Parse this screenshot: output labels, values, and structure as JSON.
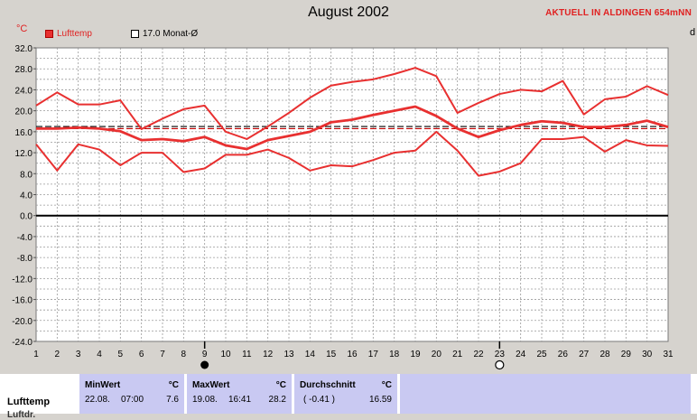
{
  "title": "August 2002",
  "brand": "AKTUELL IN ALDINGEN 654mNN",
  "unit_label": "°C",
  "legend": [
    {
      "label": "Lufttemp",
      "type": "filled"
    },
    {
      "label": "17.0 Monat-Ø",
      "type": "open"
    }
  ],
  "edge_glyph": "d",
  "colors": {
    "series": "#e83030",
    "mean": "#c00000",
    "background": "#ffffff",
    "frame": "#d6d3ce"
  },
  "markers": {
    "new_moon_day": 9,
    "full_moon_day": 23
  },
  "chart_data": {
    "type": "line",
    "title": "August 2002",
    "ylabel": "°C",
    "x": [
      1,
      2,
      3,
      4,
      5,
      6,
      7,
      8,
      9,
      10,
      11,
      12,
      13,
      14,
      15,
      16,
      17,
      18,
      19,
      20,
      21,
      22,
      23,
      24,
      25,
      26,
      27,
      28,
      29,
      30,
      31
    ],
    "ylim": [
      -24,
      32
    ],
    "yticks": [
      32.0,
      28.0,
      24.0,
      20.0,
      16.0,
      12.0,
      8.0,
      4.0,
      0.0,
      -4.0,
      -8.0,
      -12.0,
      -16.0,
      -20.0,
      -24.0
    ],
    "ytick_labels": [
      "32.0",
      "28.0",
      "24.0",
      "20.0",
      "16.0",
      "12.0",
      "8.0",
      "4.0",
      "0.0",
      "-4.0",
      "-8.0",
      "-12.0",
      "-16.0",
      "-20.0",
      "-24.0"
    ],
    "xtick_labels": [
      "1",
      "2",
      "3",
      "4",
      "5",
      "6",
      "7",
      "8",
      "9",
      "10",
      "11",
      "12",
      "13",
      "14",
      "15",
      "16",
      "17",
      "18",
      "19",
      "20",
      "21",
      "22",
      "23",
      "24",
      "25",
      "26",
      "27",
      "28",
      "29",
      "30",
      "31"
    ],
    "grid": true,
    "series": [
      {
        "role": "max",
        "values": [
          21.0,
          23.5,
          21.2,
          21.2,
          22.0,
          16.5,
          18.5,
          20.3,
          21.0,
          16.0,
          14.6,
          17.0,
          19.6,
          22.5,
          24.8,
          25.5,
          26.0,
          27.0,
          28.2,
          26.6,
          19.6,
          21.5,
          23.2,
          24.0,
          23.7,
          25.7,
          19.3,
          22.2,
          22.7,
          24.7,
          23.0
        ]
      },
      {
        "role": "avg",
        "values": [
          16.6,
          16.6,
          16.8,
          16.6,
          16.1,
          14.4,
          14.6,
          14.2,
          15.0,
          13.4,
          12.7,
          14.4,
          15.2,
          16.0,
          17.8,
          18.3,
          19.2,
          20.0,
          20.8,
          19.0,
          16.6,
          15.0,
          16.3,
          17.3,
          18.0,
          17.7,
          16.9,
          16.9,
          17.3,
          18.1,
          16.9
        ]
      },
      {
        "role": "min",
        "values": [
          13.6,
          8.6,
          13.6,
          12.6,
          9.6,
          12.0,
          12.0,
          8.3,
          9.0,
          11.6,
          11.6,
          12.6,
          11.0,
          8.6,
          9.6,
          9.4,
          10.6,
          12.0,
          12.4,
          16.0,
          12.4,
          7.6,
          8.4,
          10.0,
          14.6,
          14.6,
          15.0,
          12.2,
          14.4,
          13.4,
          13.3
        ]
      }
    ],
    "reference_lines": [
      {
        "label": "17.0 Monat-Ø",
        "value": 17.0,
        "style": "dashed",
        "color": "#000000"
      },
      {
        "value": 16.59,
        "style": "dashed",
        "color": "#c00000"
      }
    ]
  },
  "stats": {
    "row_label": "Lufttemp",
    "row_label_next": "Luftdr.",
    "unit": "°C",
    "min": {
      "header": "MinWert",
      "date": "22.08.",
      "time": "07:00",
      "value": "7.6"
    },
    "max": {
      "header": "MaxWert",
      "date": "19.08.",
      "time": "16:41",
      "value": "28.2"
    },
    "avg": {
      "header": "Durchschnitt",
      "deviation": "( -0.41 )",
      "value": "16.59"
    }
  }
}
